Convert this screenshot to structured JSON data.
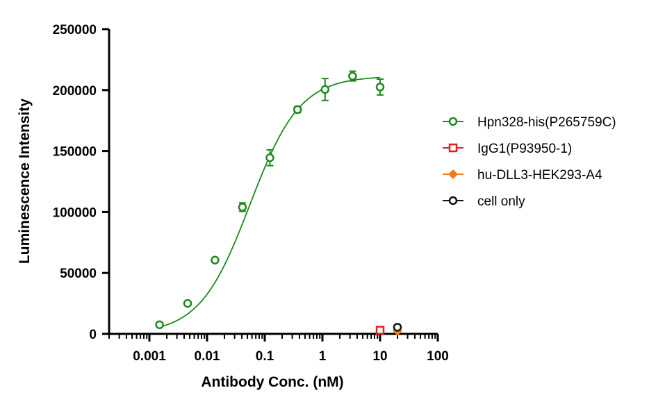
{
  "chart_data": {
    "type": "scatter",
    "title": "",
    "xlabel": "Antibody Conc. (nM)",
    "ylabel": "Luminescence Intensity",
    "x_scale": "log",
    "xlim": [
      0.0002,
      100
    ],
    "ylim": [
      0,
      250000
    ],
    "x_ticks": [
      0.001,
      0.01,
      0.1,
      1,
      10,
      100
    ],
    "x_tick_labels": [
      "0.001",
      "0.01",
      "0.1",
      "1",
      "10",
      "100"
    ],
    "y_ticks": [
      0,
      50000,
      100000,
      150000,
      200000,
      250000
    ],
    "y_tick_labels": [
      "0",
      "50000",
      "100000",
      "150000",
      "200000",
      "250000"
    ],
    "grid": false,
    "legend_position": "right",
    "series": [
      {
        "name": "Hpn328-his(P265759C)",
        "color": "#1a8a1a",
        "marker": "circle",
        "x": [
          0.0015,
          0.0046,
          0.0137,
          0.041,
          0.123,
          0.37,
          1.11,
          3.33,
          10
        ],
        "y": [
          7500,
          25000,
          60500,
          104000,
          144500,
          184000,
          200500,
          211500,
          202500
        ],
        "error": [
          0,
          0,
          0,
          3500,
          6500,
          2500,
          9000,
          4000,
          6500
        ],
        "fit": {
          "model": "4PL",
          "bottom": 0,
          "top": 211500,
          "ec50": 0.055,
          "hill": 1.0,
          "x_range": [
            0.0015,
            10
          ]
        }
      },
      {
        "name": "IgG1(P93950-1)",
        "color": "#e02020",
        "marker": "square",
        "x": [
          10
        ],
        "y": [
          3000
        ],
        "error": [
          0
        ]
      },
      {
        "name": "hu-DLL3-HEK293-A4",
        "color": "#f07b1a",
        "marker": "diamond",
        "x": [
          20
        ],
        "y": [
          2500
        ],
        "error": [
          0
        ]
      },
      {
        "name": "cell only",
        "color": "#111111",
        "marker": "circle",
        "x": [
          20
        ],
        "y": [
          5500
        ],
        "error": [
          0
        ]
      }
    ]
  }
}
